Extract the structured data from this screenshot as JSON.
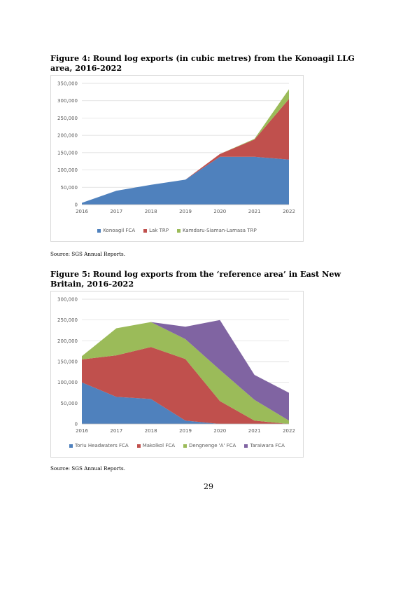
{
  "figure4": {
    "title": "Figure 4: Round log exports (in cubic metres) from the Konoagil LLG area, 2016-2022",
    "source": "Source: SGS Annual Reports."
  },
  "figure5": {
    "title": "Figure 5: Round log exports from the ‘reference area’ in East New Britain, 2016-2022",
    "source": "Source: SGS Annual Reports."
  },
  "page_number": "29",
  "chart_data": [
    {
      "type": "area",
      "stacked": true,
      "x": [
        "2016",
        "2017",
        "2018",
        "2019",
        "2020",
        "2021",
        "2022"
      ],
      "ylim": [
        0,
        350000
      ],
      "y_ticks": [
        "0",
        "50,000",
        "100,000",
        "150,000",
        "200,000",
        "250,000",
        "300,000",
        "350,000"
      ],
      "grid": true,
      "legend": "bottom",
      "series": [
        {
          "name": "Konoagil FCA",
          "color": "#4f81bd",
          "values": [
            5000,
            40000,
            57000,
            72000,
            138000,
            138000,
            130000
          ]
        },
        {
          "name": "Lak TRP",
          "color": "#c0504d",
          "values": [
            0,
            0,
            0,
            0,
            8000,
            50000,
            175000
          ]
        },
        {
          "name": "Kamdaru-Siaman-Lamasa TRP",
          "color": "#9bbb59",
          "values": [
            0,
            0,
            0,
            0,
            0,
            2000,
            28000
          ]
        }
      ]
    },
    {
      "type": "area",
      "stacked": true,
      "x": [
        "2016",
        "2017",
        "2018",
        "2019",
        "2020",
        "2021",
        "2022"
      ],
      "ylim": [
        0,
        300000
      ],
      "y_ticks": [
        "0",
        "50,000",
        "100,000",
        "150,000",
        "200,000",
        "250,000",
        "300,000"
      ],
      "grid": true,
      "legend": "bottom",
      "series": [
        {
          "name": "Toriu Headwaters FCA",
          "color": "#4f81bd",
          "values": [
            100000,
            65000,
            60000,
            8000,
            0,
            0,
            0
          ]
        },
        {
          "name": "Makolkol FCA",
          "color": "#c0504d",
          "values": [
            55000,
            100000,
            125000,
            148000,
            55000,
            8000,
            0
          ]
        },
        {
          "name": "Dengnenge 'A' FCA",
          "color": "#9bbb59",
          "values": [
            8000,
            65000,
            60000,
            48000,
            75000,
            50000,
            8000
          ]
        },
        {
          "name": "Taraiwara FCA",
          "color": "#8064a2",
          "values": [
            0,
            0,
            0,
            30000,
            120000,
            60000,
            67000
          ]
        }
      ]
    }
  ]
}
